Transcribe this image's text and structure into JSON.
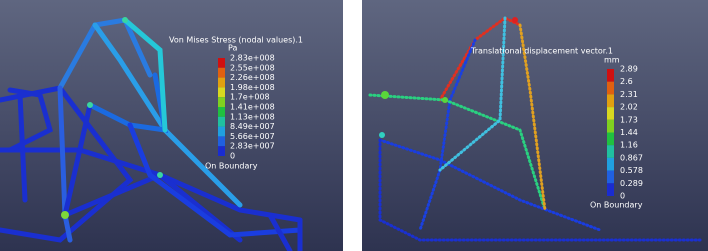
{
  "panels": [
    {
      "legend": {
        "title": "Von Mises Stress (nodal values).1",
        "unit": "Pa",
        "labels": [
          "2.83e+008",
          "2.55e+008",
          "2.26e+008",
          "1.98e+008",
          "1.7e+008",
          "1.41e+008",
          "1.13e+008",
          "8.49e+007",
          "5.66e+007",
          "2.83e+007",
          "0"
        ],
        "footer": "On Boundary"
      }
    },
    {
      "legend": {
        "title": "Translational displacement vector.1",
        "unit": "mm",
        "labels": [
          "2.89",
          "2.6",
          "2.31",
          "2.02",
          "1.73",
          "1.44",
          "1.16",
          "0.867",
          "0.578",
          "0.289",
          "0"
        ],
        "footer": "On Boundary"
      }
    }
  ]
}
